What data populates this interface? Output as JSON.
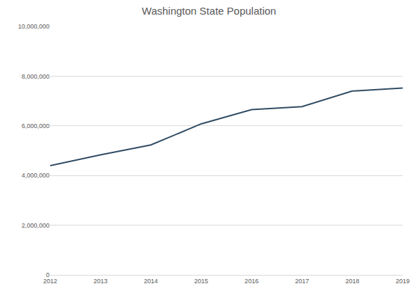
{
  "chart_data": {
    "type": "line",
    "title": "Washington State Population",
    "categories": [
      "2012",
      "2013",
      "2014",
      "2015",
      "2016",
      "2017",
      "2018",
      "2019"
    ],
    "values": [
      4400000,
      4830000,
      5230000,
      6080000,
      6650000,
      6770000,
      7400000,
      7520000
    ],
    "color": "#2f4b63",
    "ylim": [
      0,
      10000000
    ],
    "yticks": [
      0,
      {
        "value": 2000000,
        "label": "2,000,000"
      },
      {
        "value": 4000000,
        "label": "4,000,000"
      },
      {
        "value": 6000000,
        "label": "6,000,000"
      },
      {
        "value": 8000000,
        "label": "8,000,000"
      },
      {
        "value": 10000000,
        "label": "10,000,000"
      }
    ],
    "grid": true
  }
}
